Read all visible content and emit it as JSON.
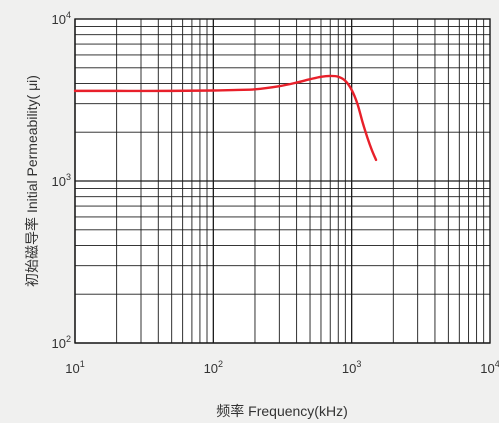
{
  "chart_data": {
    "type": "line",
    "title": "",
    "xlabel": "频率 Frequency(kHz)",
    "ylabel": "初始磁导率  Initial Permeability( μi)",
    "x_scale": "log",
    "y_scale": "log",
    "xlim": [
      10,
      10000
    ],
    "ylim": [
      100,
      10000
    ],
    "grid": true,
    "legend": "none",
    "x_ticks": [
      {
        "base": "10",
        "exp": "1"
      },
      {
        "base": "10",
        "exp": "2"
      },
      {
        "base": "10",
        "exp": "3"
      },
      {
        "base": "10",
        "exp": "4"
      }
    ],
    "y_ticks": [
      {
        "base": "10",
        "exp": "2"
      },
      {
        "base": "10",
        "exp": "3"
      },
      {
        "base": "10",
        "exp": "4"
      }
    ],
    "series": [
      {
        "color": "#e8202a",
        "x": [
          10,
          20,
          50,
          100,
          150,
          200,
          300,
          400,
          500,
          600,
          700,
          800,
          900,
          1000,
          1100,
          1200,
          1300,
          1400,
          1500
        ],
        "y": [
          3600,
          3600,
          3600,
          3620,
          3650,
          3680,
          3850,
          4050,
          4250,
          4400,
          4450,
          4400,
          4150,
          3650,
          3000,
          2300,
          1850,
          1550,
          1350
        ]
      }
    ]
  },
  "colors": {
    "background": "#f0f0ef",
    "plot_background": "#ffffff",
    "grid": "#1a1a1a",
    "curve": "#e8202a",
    "text": "#333333"
  }
}
